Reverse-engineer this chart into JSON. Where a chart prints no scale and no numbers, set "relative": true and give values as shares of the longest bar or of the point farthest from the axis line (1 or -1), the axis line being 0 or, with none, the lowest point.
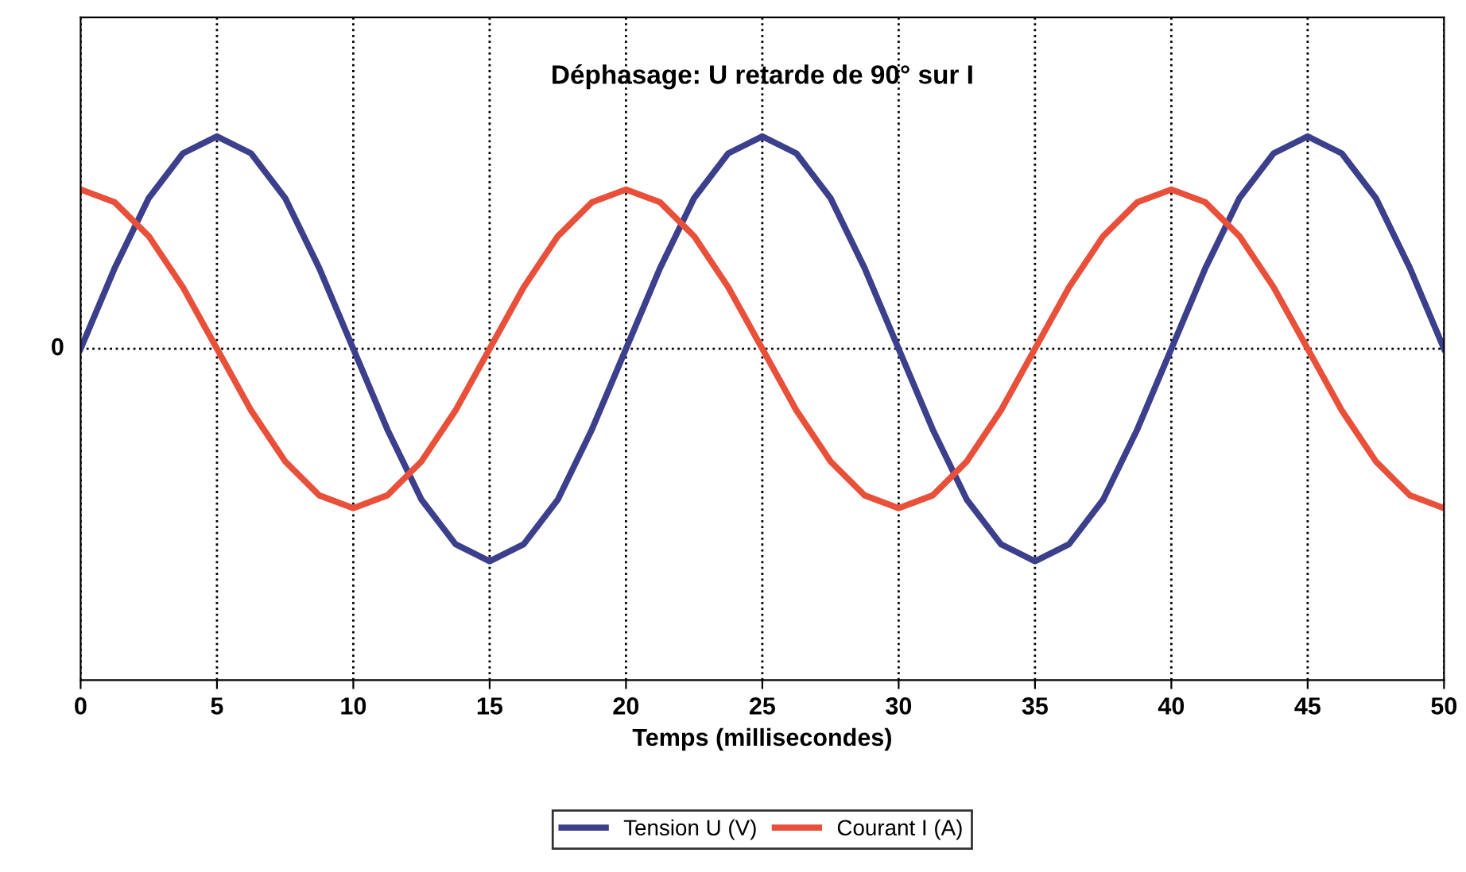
{
  "chart_data": {
    "type": "line",
    "title": "Déphasage: U retarde de 90° sur I",
    "xlabel": "Temps (millisecondes)",
    "x": [
      0,
      1.25,
      2.5,
      3.75,
      5,
      6.25,
      7.5,
      8.75,
      10,
      11.25,
      12.5,
      13.75,
      15,
      16.25,
      17.5,
      18.75,
      20,
      21.25,
      22.5,
      23.75,
      25,
      26.25,
      27.5,
      28.75,
      30,
      31.25,
      32.5,
      33.75,
      35,
      36.25,
      37.5,
      38.75,
      40,
      41.25,
      42.5,
      43.75,
      45,
      46.25,
      47.5,
      48.75,
      50
    ],
    "series": [
      {
        "name": "Tension U (V)",
        "color": "#3c3f8c",
        "values": [
          0,
          0.38,
          0.71,
          0.92,
          1,
          0.92,
          0.71,
          0.38,
          0,
          -0.38,
          -0.71,
          -0.92,
          -1,
          -0.92,
          -0.71,
          -0.38,
          0,
          0.38,
          0.71,
          0.92,
          1,
          0.92,
          0.71,
          0.38,
          0,
          -0.38,
          -0.71,
          -0.92,
          -1,
          -0.92,
          -0.71,
          -0.38,
          0,
          0.38,
          0.71,
          0.92,
          1,
          0.92,
          0.71,
          0.38,
          0
        ]
      },
      {
        "name": "Courant I (A)",
        "color": "#e8503a",
        "values": [
          0.75,
          0.69,
          0.53,
          0.29,
          0,
          -0.29,
          -0.53,
          -0.69,
          -0.75,
          -0.69,
          -0.53,
          -0.29,
          0,
          0.29,
          0.53,
          0.69,
          0.75,
          0.69,
          0.53,
          0.29,
          0,
          -0.29,
          -0.53,
          -0.69,
          -0.75,
          -0.69,
          -0.53,
          -0.29,
          0,
          0.29,
          0.53,
          0.69,
          0.75,
          0.69,
          0.53,
          0.29,
          0,
          -0.29,
          -0.53,
          -0.69,
          -0.75
        ]
      }
    ],
    "relative": true,
    "xlim": [
      0,
      50
    ],
    "xticks": [
      0,
      5,
      10,
      15,
      20,
      25,
      30,
      35,
      40,
      45,
      50
    ],
    "ref_lines": [
      {
        "axis": "y",
        "value": 0,
        "label": "0",
        "line_style": "dotted",
        "color": "#000000"
      }
    ],
    "grid": "x",
    "legend": "bottom",
    "marker": "none",
    "line_style": "solid"
  }
}
